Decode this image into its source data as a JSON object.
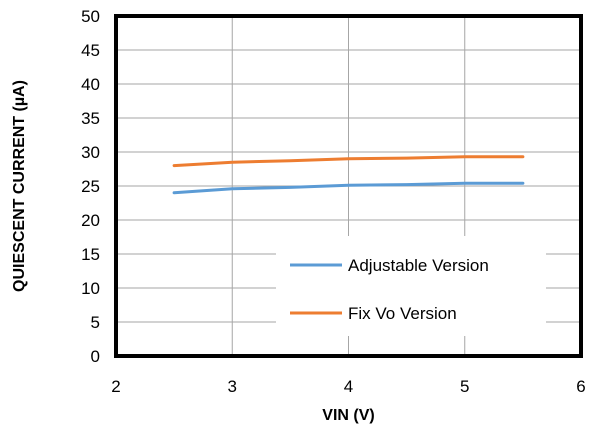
{
  "chart_data": {
    "type": "line",
    "xlabel": "VIN (V)",
    "ylabel": "QUIESCENT  CURRENT  (µA)",
    "xlim": [
      2,
      6
    ],
    "ylim": [
      0,
      50
    ],
    "x_ticks": [
      "2",
      "3",
      "4",
      "5",
      "6"
    ],
    "y_ticks": [
      "0",
      "5",
      "10",
      "15",
      "20",
      "25",
      "30",
      "35",
      "40",
      "45",
      "50"
    ],
    "grid": true,
    "legend_position": "bottom-right",
    "series": [
      {
        "name": "Adjustable Version",
        "color": "#5b9bd5",
        "x": [
          2.5,
          3.0,
          3.5,
          4.0,
          4.5,
          5.0,
          5.5
        ],
        "y": [
          24.0,
          24.6,
          24.8,
          25.1,
          25.2,
          25.4,
          25.4
        ]
      },
      {
        "name": "Fix Vo Version",
        "color": "#ed7d31",
        "x": [
          2.5,
          3.0,
          3.5,
          4.0,
          4.5,
          5.0,
          5.5
        ],
        "y": [
          28.0,
          28.5,
          28.7,
          29.0,
          29.1,
          29.3,
          29.3
        ]
      }
    ]
  }
}
